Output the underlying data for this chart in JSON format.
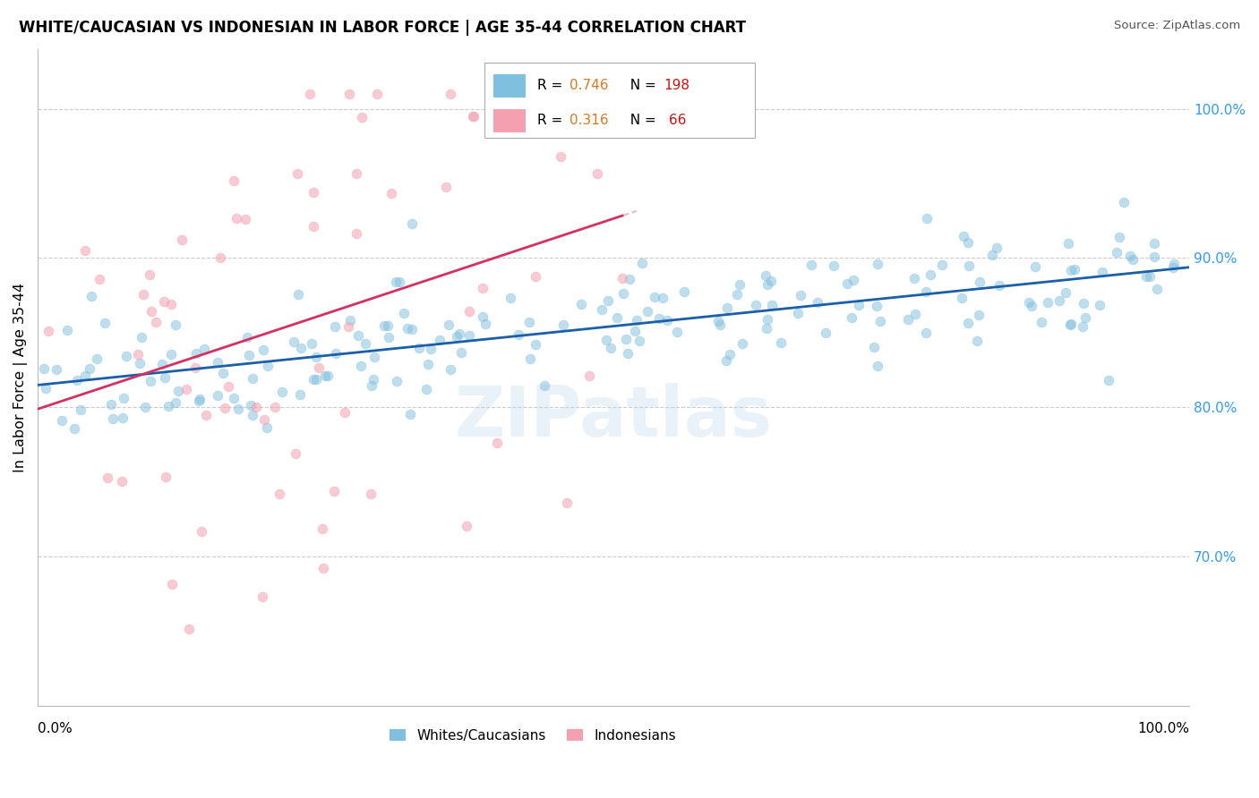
{
  "title": "WHITE/CAUCASIAN VS INDONESIAN IN LABOR FORCE | AGE 35-44 CORRELATION CHART",
  "source": "Source: ZipAtlas.com",
  "ylabel": "In Labor Force | Age 35-44",
  "right_yticks": [
    0.7,
    0.8,
    0.9,
    1.0
  ],
  "right_ytick_labels": [
    "70.0%",
    "80.0%",
    "90.0%",
    "100.0%"
  ],
  "blue_color": "#7fbfdf",
  "pink_color": "#f4a0b0",
  "blue_line_color": "#1a5fa8",
  "pink_line_color": "#d63060",
  "dash_color": "#d090a0",
  "watermark": "ZIPatlas",
  "blue_R": 0.746,
  "blue_N": 198,
  "pink_R": 0.316,
  "pink_N": 66,
  "xmin": 0.0,
  "xmax": 1.0,
  "ymin": 0.6,
  "ymax": 1.04,
  "legend_R_color": "#e07020",
  "legend_N_color_blue": "#cc0000",
  "legend_N_color_pink": "#cc0000",
  "bottom_legend_white": "Whites/Caucasians",
  "bottom_legend_indonesian": "Indonesians",
  "seed_blue": 42,
  "seed_pink": 99
}
